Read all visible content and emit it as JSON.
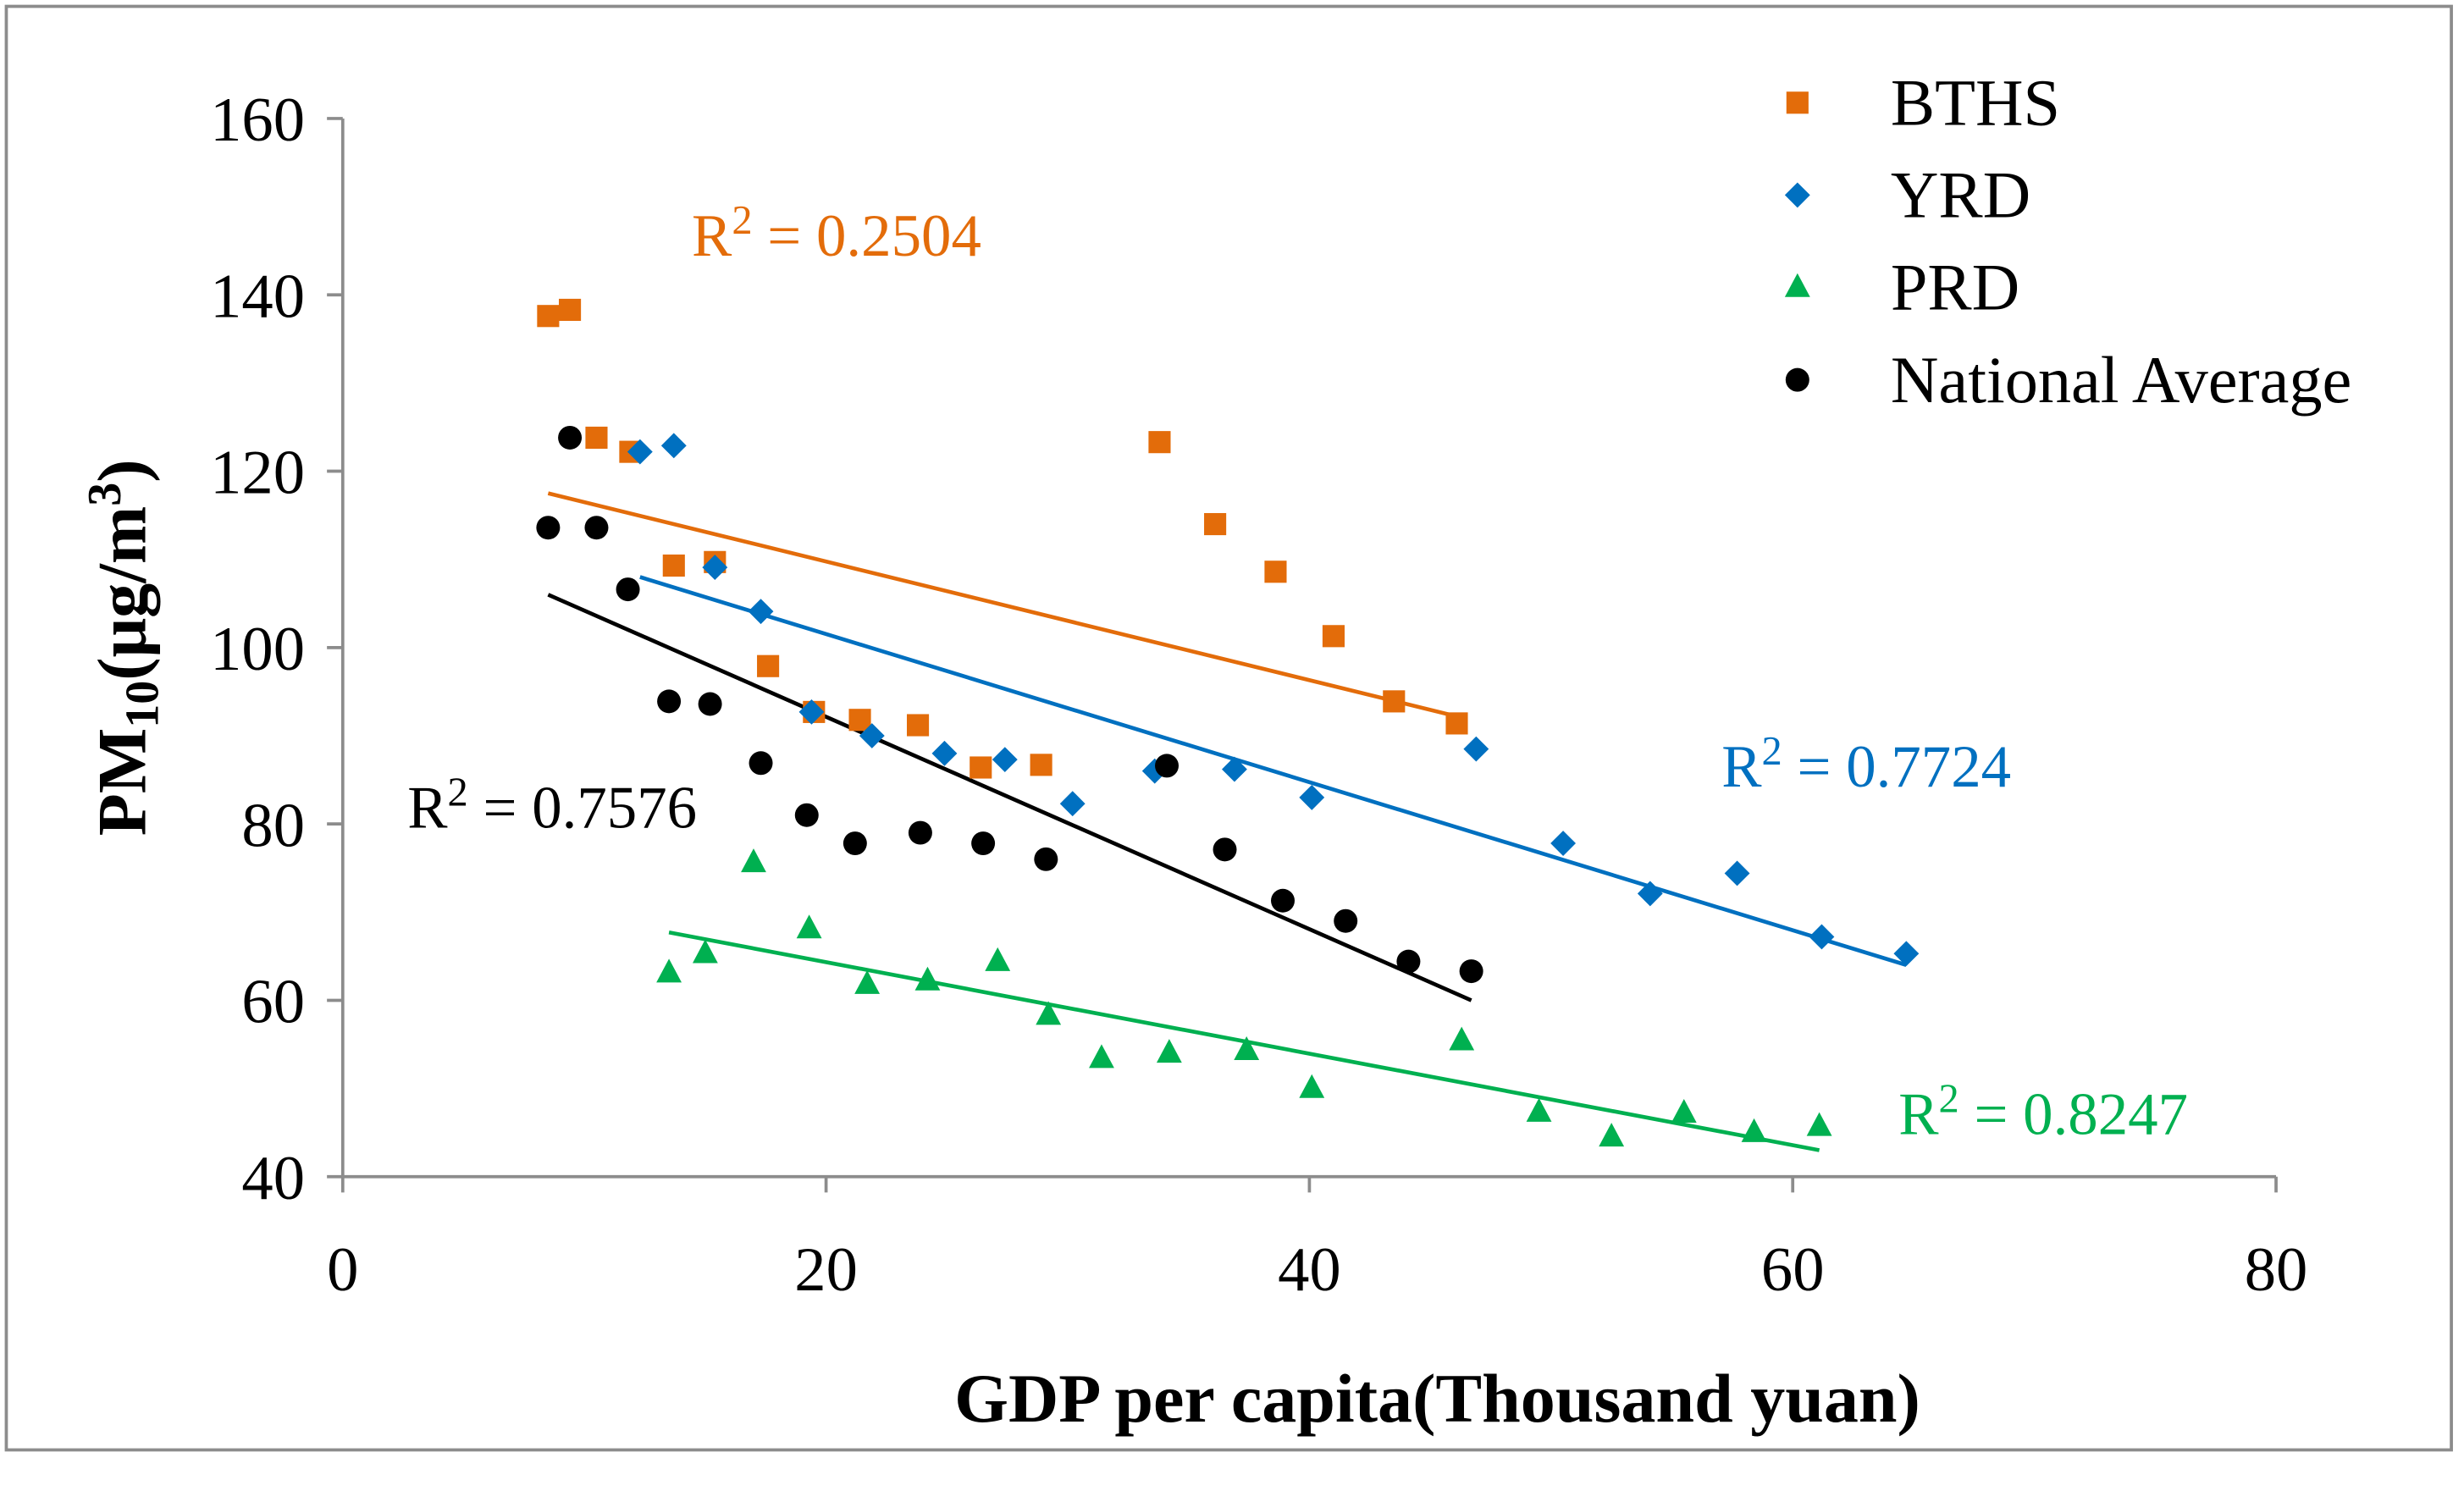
{
  "chart_data": {
    "type": "scatter",
    "title": "",
    "xlabel": "GDP per capita(Thousand yuan)",
    "ylabel_parts": {
      "base": "PM",
      "sub": "10",
      "mid": "(μg/m",
      "sup": "3",
      "end": ")"
    },
    "xlim": [
      0,
      80
    ],
    "ylim": [
      40,
      160
    ],
    "xticks": [
      "0",
      "20",
      "40",
      "60",
      "80"
    ],
    "yticks": [
      "40",
      "60",
      "80",
      "100",
      "120",
      "140",
      "160"
    ],
    "grid": false,
    "legend_position": "top-right",
    "series": [
      {
        "name": "BTHS",
        "color": "#E36C0A",
        "marker": "square",
        "x": [
          8.5,
          9.4,
          10.5,
          11.9,
          13.7,
          15.4,
          17.6,
          19.5,
          21.4,
          23.8,
          26.4,
          28.9,
          33.8,
          36.1,
          38.6,
          41.0,
          43.5,
          46.1
        ],
        "y": [
          137.6,
          138.3,
          123.8,
          122.2,
          109.3,
          109.7,
          97.9,
          92.7,
          91.8,
          91.2,
          86.4,
          86.7,
          123.3,
          114.0,
          108.6,
          101.3,
          93.9,
          91.4
        ],
        "trend": {
          "x": [
            8.5,
            46.1
          ],
          "y": [
            117.5,
            92.2
          ]
        },
        "r2": {
          "prefix": "R",
          "sup": "2",
          "value": " = 0.2504"
        }
      },
      {
        "name": "YRD",
        "color": "#0070C0",
        "marker": "diamond",
        "x": [
          12.3,
          13.7,
          15.4,
          17.3,
          19.4,
          21.9,
          24.9,
          27.4,
          30.2,
          33.6,
          36.9,
          40.1,
          46.9,
          50.5,
          54.1,
          57.7,
          61.2,
          64.7
        ],
        "y": [
          122.2,
          122.9,
          109.1,
          104.1,
          92.7,
          90.0,
          88.0,
          87.3,
          82.3,
          86.0,
          86.2,
          83.0,
          88.5,
          77.8,
          72.1,
          74.4,
          67.2,
          65.3
        ],
        "trend": {
          "x": [
            12.3,
            64.7
          ],
          "y": [
            108.0,
            64.0
          ]
        },
        "r2": {
          "prefix": "R",
          "sup": "2",
          "value": " = 0.7724"
        }
      },
      {
        "name": "PRD",
        "color": "#00B050",
        "marker": "triangle",
        "x": [
          13.5,
          15.0,
          17.0,
          19.3,
          21.7,
          24.2,
          27.1,
          29.2,
          31.4,
          34.2,
          37.4,
          40.1,
          46.3,
          49.5,
          52.5,
          55.5,
          58.4,
          61.1
        ],
        "y": [
          63.1,
          65.3,
          75.6,
          68.1,
          61.8,
          62.2,
          64.4,
          58.3,
          53.4,
          54.0,
          54.3,
          50.0,
          55.4,
          47.3,
          44.5,
          47.2,
          45.0,
          45.7
        ],
        "trend": {
          "x": [
            13.5,
            61.1
          ],
          "y": [
            67.7,
            43.0
          ]
        },
        "r2": {
          "prefix": "R",
          "sup": "2",
          "value": " = 0.8247"
        }
      },
      {
        "name": "National Average",
        "color": "#000000",
        "marker": "circle",
        "x": [
          8.5,
          9.4,
          10.5,
          11.8,
          13.5,
          15.2,
          17.3,
          19.2,
          21.2,
          23.9,
          26.5,
          29.1,
          34.1,
          36.5,
          38.9,
          41.5,
          44.1,
          46.7
        ],
        "y": [
          113.6,
          123.8,
          113.6,
          106.6,
          93.9,
          93.6,
          86.9,
          81.0,
          77.8,
          79.0,
          77.8,
          76.0,
          86.6,
          77.1,
          71.3,
          69.0,
          64.4,
          63.3
        ],
        "trend": {
          "x": [
            8.5,
            46.7
          ],
          "y": [
            106.0,
            60.0
          ]
        },
        "r2": {
          "prefix": "R",
          "sup": "2",
          "value": " = 0.7576"
        }
      }
    ]
  }
}
